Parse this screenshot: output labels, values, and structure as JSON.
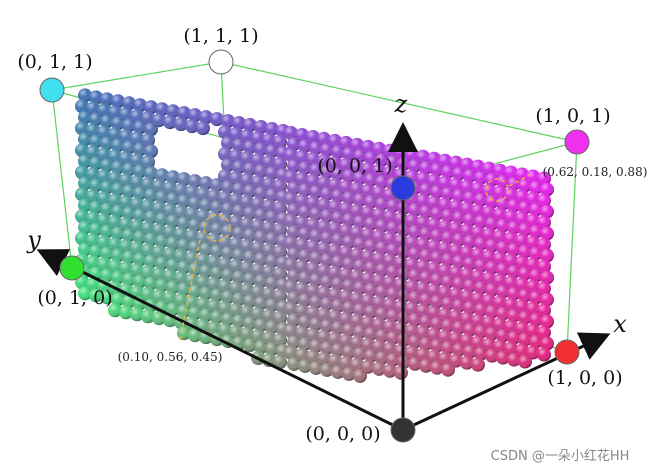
{
  "corners": [
    {
      "label": "(0, 1, 1)"
    },
    {
      "label": "(1, 1, 1)"
    },
    {
      "label": "(1, 0, 1)"
    },
    {
      "label": "(0, 0, 1)"
    },
    {
      "label": "(0, 1, 0)"
    },
    {
      "label": "(1, 0, 0)"
    },
    {
      "label": "(0, 0, 0)"
    }
  ],
  "axes": {
    "x": "x",
    "y": "y",
    "z": "z"
  },
  "annotations": [
    "(0.62, 0.18, 0.88)",
    "(0.10, 0.56, 0.45)"
  ],
  "watermark": "CSDN @一朵小红花HH"
}
